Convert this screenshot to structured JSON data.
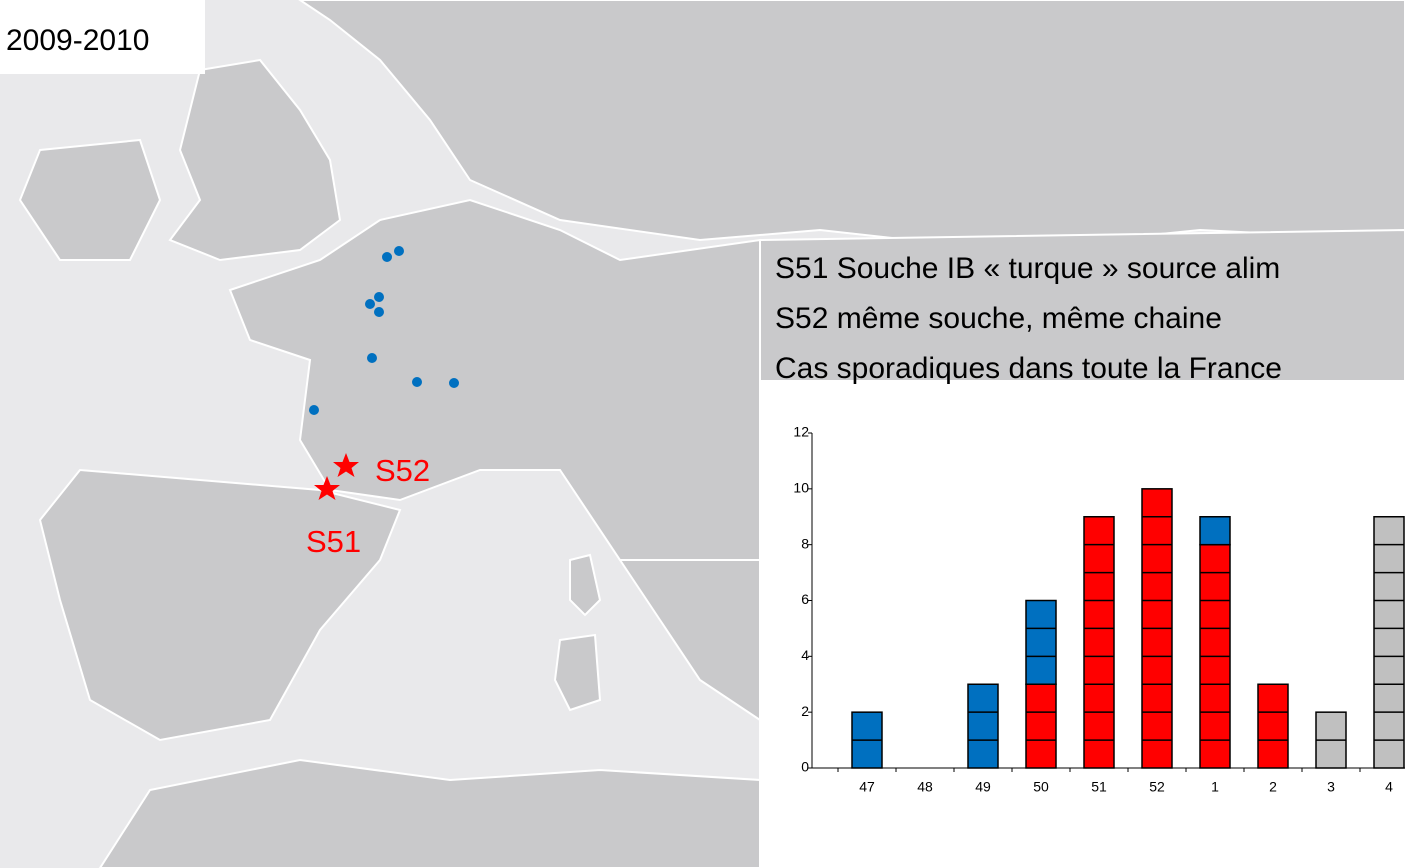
{
  "chart_data": {
    "type": "bar",
    "stacked": true,
    "title": "2009-2010",
    "annotations": [
      "S51 Souche IB « turque » source alim",
      "S52 même souche, même chaine",
      "Cas sporadiques dans toute la France"
    ],
    "map_labels": [
      "S52",
      "S51"
    ],
    "categories": [
      "47",
      "48",
      "49",
      "50",
      "51",
      "52",
      "1",
      "2",
      "3",
      "4"
    ],
    "series": [
      {
        "color": "#ff0000",
        "values": [
          0,
          0,
          0,
          3,
          9,
          10,
          8,
          3,
          0,
          0
        ]
      },
      {
        "color": "#0070c0",
        "values": [
          2,
          0,
          3,
          3,
          0,
          0,
          1,
          0,
          0,
          0
        ]
      },
      {
        "color": "#c0c0c0",
        "values": [
          0,
          0,
          0,
          0,
          0,
          0,
          0,
          0,
          2,
          9
        ]
      }
    ],
    "ylim": [
      0,
      12
    ],
    "yticks": [
      0,
      2,
      4,
      6,
      8,
      10,
      12
    ]
  }
}
